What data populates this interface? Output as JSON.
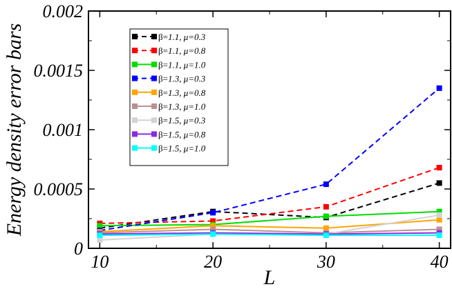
{
  "chart_data": {
    "type": "line",
    "title": "",
    "xlabel": "L",
    "ylabel": "Energy density error bars",
    "x": [
      10,
      20,
      30,
      40
    ],
    "xlim": [
      9,
      41
    ],
    "ylim": [
      0,
      0.002
    ],
    "xticks": [
      10,
      20,
      30,
      40
    ],
    "xtick_labels": [
      "10",
      "20",
      "30",
      "40"
    ],
    "yticks": [
      0,
      0.0005,
      0.001,
      0.0015,
      0.002
    ],
    "ytick_labels": [
      "0",
      "0.0005",
      "0.001",
      "0.0015",
      "0.002"
    ],
    "grid": false,
    "legend_position": "top-left",
    "series": [
      {
        "beta": "1.1",
        "mu": "0.3",
        "color": "#000000",
        "dashed": true,
        "values": [
          0.00017,
          0.00031,
          0.00026,
          0.00055
        ]
      },
      {
        "beta": "1.1",
        "mu": "0.8",
        "color": "#ff0000",
        "dashed": true,
        "values": [
          0.00021,
          0.00023,
          0.00035,
          0.00068
        ]
      },
      {
        "beta": "1.1",
        "mu": "1.0",
        "color": "#00dd00",
        "dashed": false,
        "values": [
          0.00019,
          0.0002,
          0.00027,
          0.00031
        ]
      },
      {
        "beta": "1.3",
        "mu": "0.3",
        "color": "#0000ff",
        "dashed": true,
        "values": [
          0.00015,
          0.0003,
          0.00054,
          0.00135
        ]
      },
      {
        "beta": "1.3",
        "mu": "0.8",
        "color": "#ffa500",
        "dashed": false,
        "values": [
          0.00014,
          0.00019,
          0.00017,
          0.00024
        ]
      },
      {
        "beta": "1.3",
        "mu": "1.0",
        "color": "#bc8f8f",
        "dashed": false,
        "values": [
          0.00013,
          0.00016,
          0.00013,
          0.00016
        ]
      },
      {
        "beta": "1.5",
        "mu": "0.3",
        "color": "#d3d3d3",
        "dashed": false,
        "values": [
          7e-05,
          0.00012,
          0.00012,
          0.00028
        ]
      },
      {
        "beta": "1.5",
        "mu": "0.8",
        "color": "#8a2be2",
        "dashed": false,
        "values": [
          0.00012,
          0.00013,
          0.00012,
          0.00013
        ]
      },
      {
        "beta": "1.5",
        "mu": "1.0",
        "color": "#00ffff",
        "dashed": false,
        "values": [
          0.00011,
          0.00012,
          0.00011,
          0.00011
        ]
      }
    ]
  }
}
